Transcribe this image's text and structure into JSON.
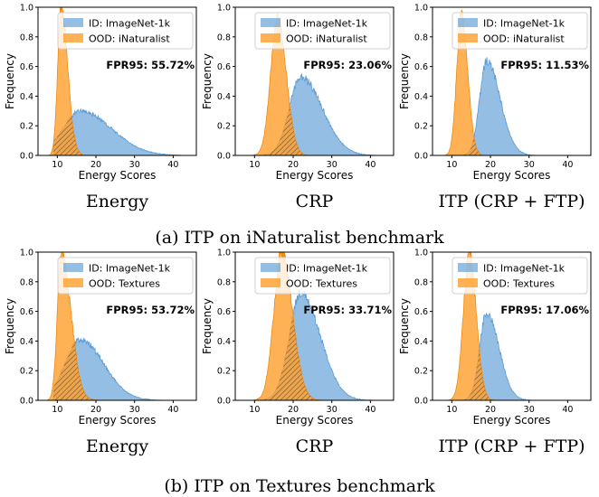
{
  "colors": {
    "id": "#5b9bd5",
    "ood": "#ff9f2a",
    "overlap_hatch": "#7a4a1a"
  },
  "captions": [
    "(a) ITP on iNaturalist benchmark",
    "(b) ITP on Textures benchmark"
  ],
  "chart_data": [
    {
      "type": "area",
      "group": 0,
      "method": "Energy",
      "xlabel": "Energy Scores",
      "ylabel": "Frequency",
      "xlim": [
        5,
        46
      ],
      "ylim": [
        0,
        1
      ],
      "xticks": [
        10,
        20,
        30,
        40
      ],
      "yticks": [
        0,
        0.2,
        0.4,
        0.6,
        0.8,
        1.0
      ],
      "legend_loc": "top-right",
      "fpr95": "FPR95: 55.72%",
      "series": [
        {
          "name": "ID: ImageNet-1k",
          "peak_x": 16,
          "peak_y": 0.3,
          "wl": 4.5,
          "wr": 8,
          "x_min": 9,
          "x_max": 42
        },
        {
          "name": "OOD: iNaturalist",
          "peak_x": 11,
          "peak_y": 1.0,
          "wl": 0.9,
          "wr": 1.7,
          "x_min": 7,
          "x_max": 26
        }
      ]
    },
    {
      "type": "area",
      "group": 0,
      "method": "CRP",
      "xlabel": "Energy Scores",
      "ylabel": "Frequency",
      "xlim": [
        5,
        46
      ],
      "ylim": [
        0,
        1
      ],
      "xticks": [
        10,
        20,
        30,
        40
      ],
      "yticks": [
        0,
        0.2,
        0.4,
        0.6,
        0.8,
        1.0
      ],
      "legend_loc": "top-right",
      "fpr95": "FPR95: 23.06%",
      "series": [
        {
          "name": "ID: ImageNet-1k",
          "peak_x": 22,
          "peak_y": 0.53,
          "wl": 3,
          "wr": 5.5,
          "x_min": 12,
          "x_max": 45
        },
        {
          "name": "OOD: iNaturalist",
          "peak_x": 16,
          "peak_y": 0.93,
          "wl": 1.8,
          "wr": 2.2,
          "x_min": 9,
          "x_max": 30
        }
      ]
    },
    {
      "type": "area",
      "group": 0,
      "method": "ITP (CRP + FTP)",
      "xlabel": "Energy Scores",
      "ylabel": "Frequency",
      "xlim": [
        5,
        46
      ],
      "ylim": [
        0,
        1
      ],
      "xticks": [
        10,
        20,
        30,
        40
      ],
      "yticks": [
        0,
        0.2,
        0.4,
        0.6,
        0.8,
        1.0
      ],
      "legend_loc": "top-right",
      "fpr95": "FPR95: 11.53%",
      "series": [
        {
          "name": "ID: ImageNet-1k",
          "peak_x": 19,
          "peak_y": 0.64,
          "wl": 1.8,
          "wr": 3.5,
          "x_min": 11,
          "x_max": 35
        },
        {
          "name": "OOD: iNaturalist",
          "peak_x": 12.5,
          "peak_y": 0.98,
          "wl": 1.2,
          "wr": 1.6,
          "x_min": 8,
          "x_max": 24
        }
      ]
    },
    {
      "type": "area",
      "group": 1,
      "method": "Energy",
      "xlabel": "Energy Scores",
      "ylabel": "Frequency",
      "xlim": [
        5,
        46
      ],
      "ylim": [
        0,
        1
      ],
      "xticks": [
        10,
        20,
        30,
        40
      ],
      "yticks": [
        0,
        0.2,
        0.4,
        0.6,
        0.8,
        1.0
      ],
      "legend_loc": "top-right",
      "fpr95": "FPR95: 53.72%",
      "series": [
        {
          "name": "ID: ImageNet-1k",
          "peak_x": 16,
          "peak_y": 0.41,
          "wl": 4,
          "wr": 6,
          "x_min": 9,
          "x_max": 42
        },
        {
          "name": "OOD: Textures",
          "peak_x": 11,
          "peak_y": 1.0,
          "wl": 1.0,
          "wr": 2.5,
          "x_min": 7,
          "x_max": 30
        }
      ]
    },
    {
      "type": "area",
      "group": 1,
      "method": "CRP",
      "xlabel": "Energy Scores",
      "ylabel": "Frequency",
      "xlim": [
        5,
        46
      ],
      "ylim": [
        0,
        1
      ],
      "xticks": [
        10,
        20,
        30,
        40
      ],
      "yticks": [
        0,
        0.2,
        0.4,
        0.6,
        0.8,
        1.0
      ],
      "legend_loc": "top-right",
      "fpr95": "FPR95: 33.71%",
      "series": [
        {
          "name": "ID: ImageNet-1k",
          "peak_x": 22,
          "peak_y": 0.72,
          "wl": 3,
          "wr": 5,
          "x_min": 12,
          "x_max": 45
        },
        {
          "name": "OOD: Textures",
          "peak_x": 17,
          "peak_y": 1.0,
          "wl": 2.0,
          "wr": 2.8,
          "x_min": 9,
          "x_max": 32
        }
      ]
    },
    {
      "type": "area",
      "group": 1,
      "method": "ITP (CRP + FTP)",
      "xlabel": "Energy Scores",
      "ylabel": "Frequency",
      "xlim": [
        5,
        46
      ],
      "ylim": [
        0,
        1
      ],
      "xticks": [
        10,
        20,
        30,
        40
      ],
      "yticks": [
        0,
        0.2,
        0.4,
        0.6,
        0.8,
        1.0
      ],
      "legend_loc": "top-right",
      "fpr95": "FPR95: 17.06%",
      "series": [
        {
          "name": "ID: ImageNet-1k",
          "peak_x": 19,
          "peak_y": 0.59,
          "wl": 1.8,
          "wr": 3.2,
          "x_min": 11,
          "x_max": 34
        },
        {
          "name": "OOD: Textures",
          "peak_x": 14.5,
          "peak_y": 1.0,
          "wl": 1.5,
          "wr": 1.8,
          "x_min": 8,
          "x_max": 26
        }
      ]
    }
  ]
}
